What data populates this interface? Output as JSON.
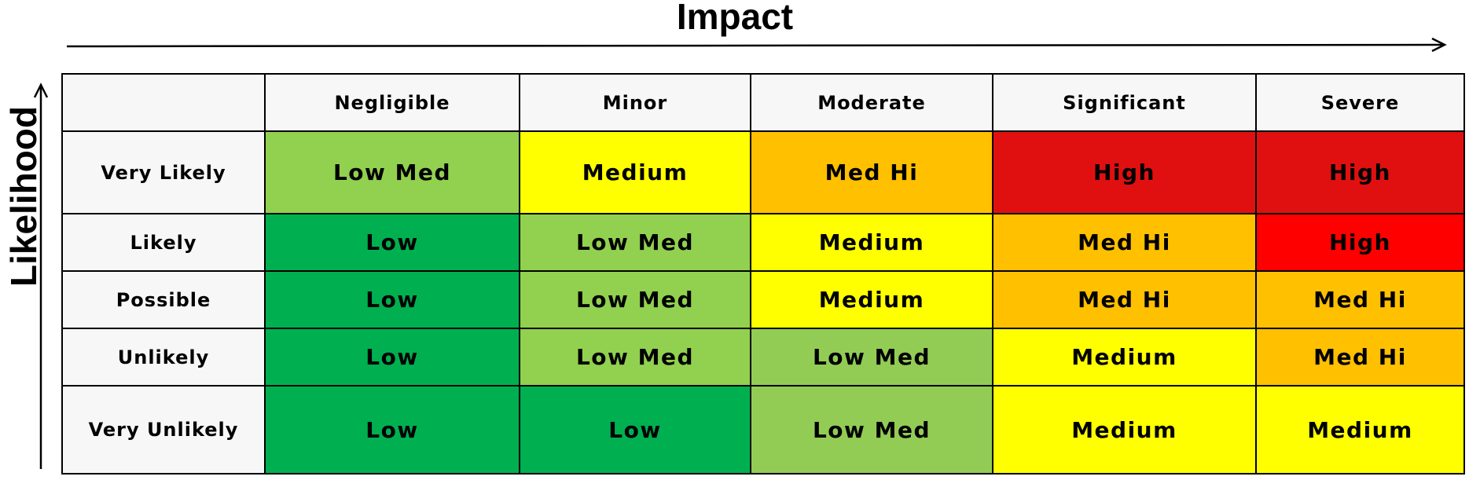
{
  "titles": {
    "impact": "Impact",
    "likelihood": "Likelihood"
  },
  "columns": [
    "Negligible",
    "Minor",
    "Moderate",
    "Significant",
    "Severe"
  ],
  "rows": [
    {
      "label": "Very Likely",
      "cells": [
        "Low Med",
        "Medium",
        "Med Hi",
        "High",
        "High"
      ]
    },
    {
      "label": "Likely",
      "cells": [
        "Low",
        "Low Med",
        "Medium",
        "Med Hi",
        "High"
      ]
    },
    {
      "label": "Possible",
      "cells": [
        "Low",
        "Low Med",
        "Medium",
        "Med Hi",
        "Med Hi"
      ]
    },
    {
      "label": "Unlikely",
      "cells": [
        "Low",
        "Low Med",
        "Low Med",
        "Medium",
        "Med Hi"
      ]
    },
    {
      "label": "Very Unlikely",
      "cells": [
        "Low",
        "Low",
        "Low Med",
        "Medium",
        "Medium"
      ]
    }
  ],
  "colors": {
    "Low": "#00b050",
    "Low Med": "#92d050",
    "Medium": "#ffff00",
    "Med Hi": "#ffc000",
    "High": "#e01010",
    "High (alt)": "#ff0000"
  }
}
